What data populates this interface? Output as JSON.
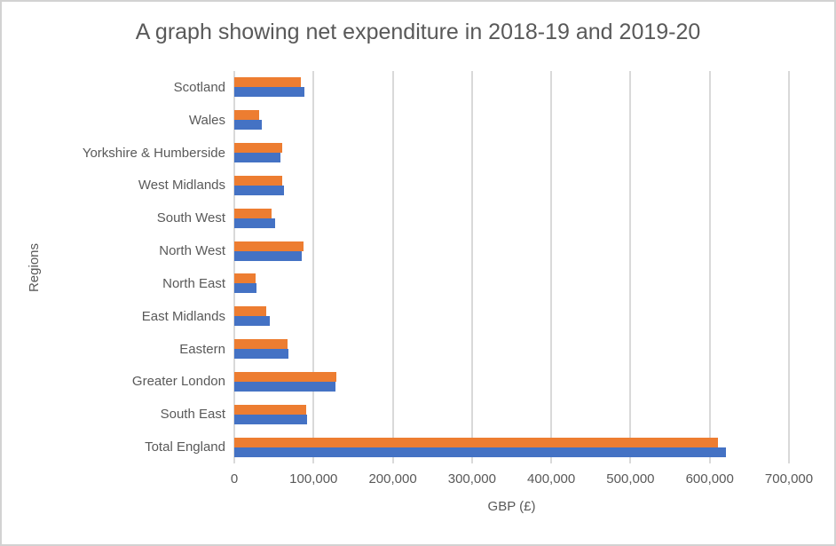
{
  "chart_data": {
    "type": "bar",
    "orientation": "horizontal",
    "title": "A graph showing net expenditure in 2018-19 and 2019-20",
    "xlabel": "GBP (£)",
    "ylabel": "Regions",
    "categories_top_to_bottom": [
      "Scotland",
      "Wales",
      "Yorkshire & Humberside",
      "West Midlands",
      "South West",
      "North West",
      "North East",
      "East Midlands",
      "Eastern",
      "Greater London",
      "South East",
      "Total England"
    ],
    "series": [
      {
        "name": "2019-20",
        "color": "#ED7D31",
        "position_in_group": "top",
        "values": [
          84000,
          31000,
          60000,
          60000,
          47000,
          87000,
          27000,
          40000,
          67000,
          129000,
          91000,
          610000
        ]
      },
      {
        "name": "2018-19",
        "color": "#4472C4",
        "position_in_group": "bottom",
        "values": [
          88000,
          35000,
          58000,
          63000,
          51000,
          85000,
          28000,
          45000,
          68000,
          128000,
          92000,
          620000
        ]
      }
    ],
    "xlim": [
      0,
      700000
    ],
    "x_tick_labels": [
      "0",
      "100,000",
      "200,000",
      "300,000",
      "400,000",
      "500,000",
      "600,000",
      "700,000"
    ],
    "grid": "vertical-gridlines",
    "legend": "none",
    "colors": {
      "gridline": "#d9d9d9",
      "text": "#595959",
      "background": "#ffffff",
      "frame_border": "#d2d2d2"
    }
  }
}
